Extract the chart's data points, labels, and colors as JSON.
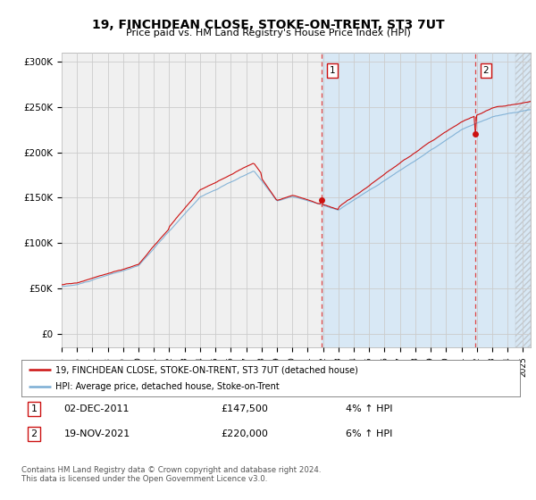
{
  "title": "19, FINCHDEAN CLOSE, STOKE-ON-TRENT, ST3 7UT",
  "subtitle": "Price paid vs. HM Land Registry's House Price Index (HPI)",
  "background_color": "#ffffff",
  "plot_bg_color_left": "#f5f5f5",
  "plot_bg_color_right": "#dce8f5",
  "grid_color": "#cccccc",
  "hpi_color": "#7aadd4",
  "price_color": "#cc1111",
  "marker1_x": 2011.92,
  "marker1_y": 147500,
  "marker2_x": 2021.88,
  "marker2_y": 220000,
  "legend_line1": "19, FINCHDEAN CLOSE, STOKE-ON-TRENT, ST3 7UT (detached house)",
  "legend_line2": "HPI: Average price, detached house, Stoke-on-Trent",
  "footer": "Contains HM Land Registry data © Crown copyright and database right 2024.\nThis data is licensed under the Open Government Licence v3.0.",
  "yticks": [
    0,
    50000,
    100000,
    150000,
    200000,
    250000,
    300000
  ],
  "ytick_labels": [
    "£0",
    "£50K",
    "£100K",
    "£150K",
    "£200K",
    "£250K",
    "£300K"
  ],
  "xmin": 1995,
  "xmax": 2025.5,
  "split_x": 2011.92
}
